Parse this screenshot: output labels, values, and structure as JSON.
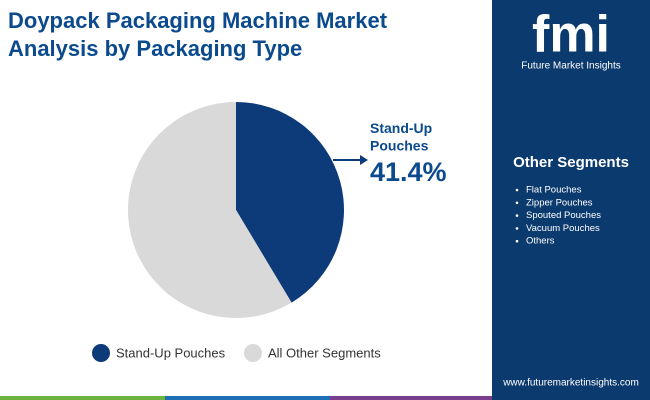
{
  "chart_data": {
    "type": "pie",
    "title": [
      "Doypack Packaging Machine Market",
      "Analysis by Packaging Type"
    ],
    "categories": [
      "Stand-Up Pouches",
      "All Other Segments"
    ],
    "values": [
      41.4,
      58.6
    ],
    "value_labels": [
      "41.4%",
      null
    ],
    "colors": [
      "#0d3b7a",
      "#d9d9d9"
    ],
    "legend": "bottom"
  },
  "sidebar": {
    "title": "Other Segments",
    "items": [
      "Flat Pouches",
      "Zipper Pouches",
      "Spouted Pouches",
      "Vacuum Pouches",
      "Others"
    ]
  },
  "brand": {
    "logo": "fmi",
    "name": "Future Market Insights",
    "url": "www.futuremarketinsights.com"
  }
}
